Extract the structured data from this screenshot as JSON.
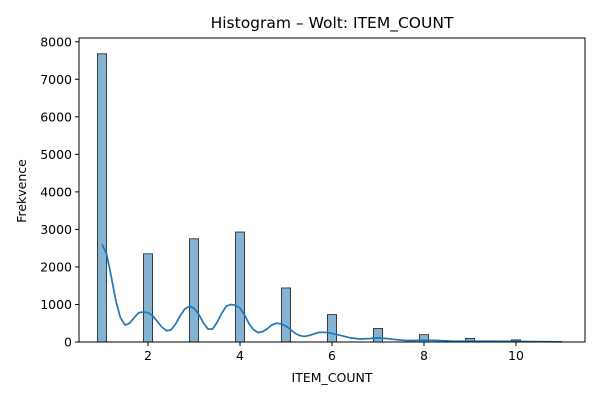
{
  "chart_data": {
    "type": "bar",
    "title": "Histogram – Wolt: ITEM_COUNT",
    "xlabel": "ITEM_COUNT",
    "ylabel": "Frekvence",
    "xlim": [
      0.5,
      11.5
    ],
    "ylim": [
      0,
      8100
    ],
    "x_ticks": [
      2,
      4,
      6,
      8,
      10
    ],
    "y_ticks": [
      0,
      1000,
      2000,
      3000,
      4000,
      5000,
      6000,
      7000,
      8000
    ],
    "bin_width": 0.2,
    "bins": [
      {
        "x": 1,
        "count": 7680
      },
      {
        "x": 2,
        "count": 2350
      },
      {
        "x": 3,
        "count": 2750
      },
      {
        "x": 4,
        "count": 2930
      },
      {
        "x": 5,
        "count": 1440
      },
      {
        "x": 6,
        "count": 730
      },
      {
        "x": 7,
        "count": 360
      },
      {
        "x": 8,
        "count": 195
      },
      {
        "x": 9,
        "count": 95
      },
      {
        "x": 10,
        "count": 55
      }
    ],
    "kde": {
      "x": [
        1.0,
        1.1,
        1.2,
        1.3,
        1.4,
        1.5,
        1.6,
        1.7,
        1.8,
        1.9,
        2.0,
        2.1,
        2.2,
        2.3,
        2.4,
        2.5,
        2.6,
        2.7,
        2.8,
        2.9,
        3.0,
        3.1,
        3.2,
        3.3,
        3.4,
        3.5,
        3.6,
        3.7,
        3.8,
        3.9,
        4.0,
        4.1,
        4.2,
        4.3,
        4.4,
        4.5,
        4.6,
        4.7,
        4.8,
        4.9,
        5.0,
        5.1,
        5.2,
        5.3,
        5.4,
        5.5,
        5.6,
        5.7,
        5.8,
        5.9,
        6.0,
        6.2,
        6.4,
        6.6,
        6.8,
        7.0,
        7.2,
        7.4,
        7.6,
        7.8,
        8.0,
        8.3,
        8.6,
        9.0,
        9.4,
        9.8,
        10.2,
        10.6,
        11.0
      ],
      "y": [
        2600,
        2350,
        1750,
        1100,
        650,
        450,
        500,
        650,
        780,
        800,
        780,
        700,
        550,
        400,
        300,
        320,
        480,
        700,
        880,
        950,
        900,
        750,
        520,
        350,
        340,
        520,
        760,
        950,
        1000,
        980,
        900,
        720,
        480,
        320,
        250,
        280,
        360,
        460,
        500,
        480,
        420,
        330,
        230,
        170,
        150,
        170,
        210,
        250,
        260,
        250,
        230,
        170,
        110,
        80,
        90,
        110,
        90,
        60,
        40,
        40,
        50,
        40,
        25,
        20,
        20,
        15,
        12,
        8,
        5
      ]
    },
    "bar_color": "#86b2d4",
    "bar_edge_color": "#1f1f1f",
    "kde_color": "#1f77b4",
    "grid": false
  }
}
